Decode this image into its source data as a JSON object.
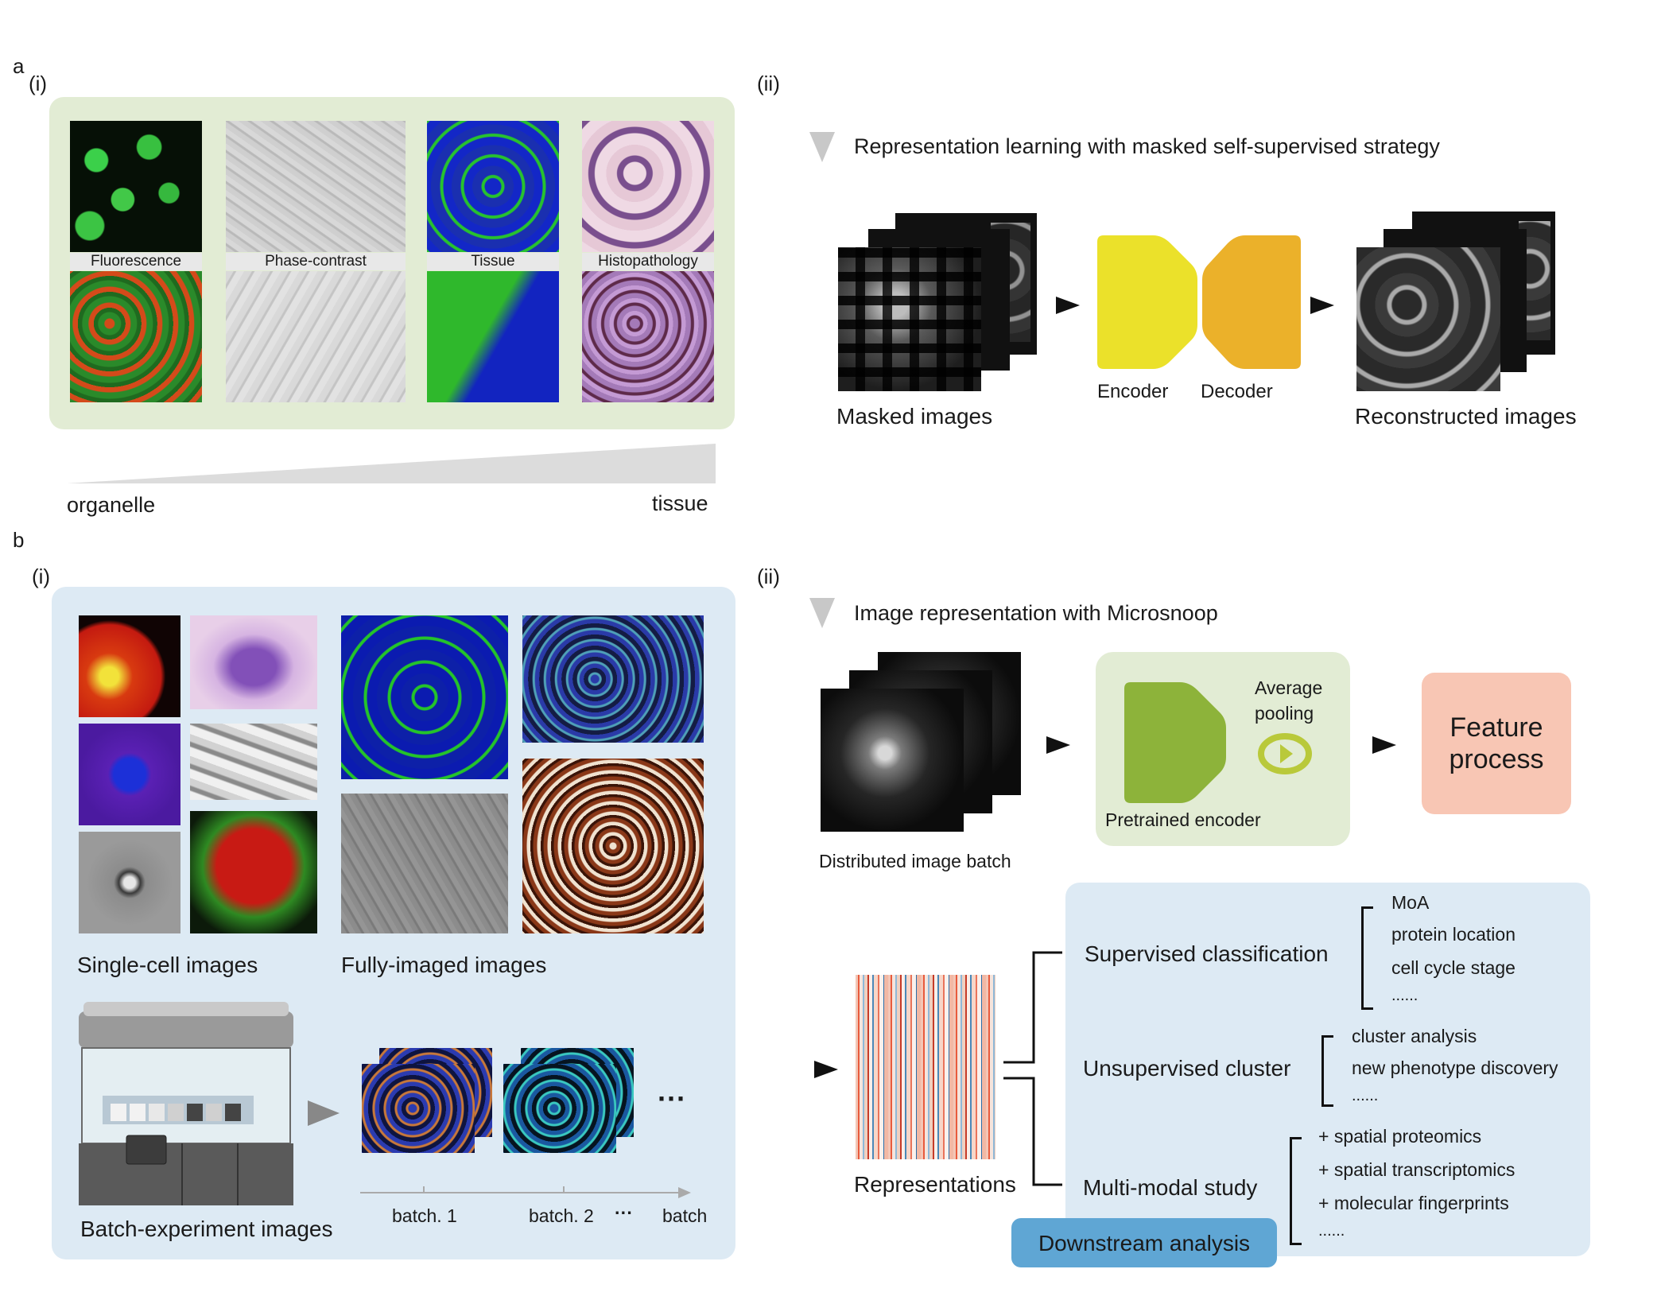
{
  "panels": {
    "a": {
      "letter": "a",
      "i": "(i)",
      "ii": "(ii)"
    },
    "b": {
      "letter": "b",
      "i": "(i)",
      "ii": "(ii)"
    }
  },
  "a_i": {
    "modalities": [
      "Fluorescence",
      "Phase-contrast",
      "Tissue",
      "Histopathology"
    ],
    "scale_left": "organelle",
    "scale_right": "tissue"
  },
  "a_ii": {
    "heading": "Representation learning with masked self-supervised strategy",
    "masked_label": "Masked images",
    "encoder_label": "Encoder",
    "decoder_label": "Decoder",
    "reconstructed_label": "Reconstructed images",
    "encoder_color": "#ebe12a",
    "decoder_color": "#ebb12a"
  },
  "b_i": {
    "single_cell_label": "Single-cell images",
    "fully_imaged_label": "Fully-imaged images",
    "batch_experiment_label": "Batch-experiment images",
    "batch_axis": [
      "batch. 1",
      "batch. 2",
      "···",
      "batch"
    ],
    "ellipsis": "···"
  },
  "b_ii": {
    "heading": "Image representation with Microsnoop",
    "distributed_label": "Distributed image batch",
    "pooling_label_1": "Average",
    "pooling_label_2": "pooling",
    "pretrained_label": "Pretrained encoder",
    "feature_1": "Feature",
    "feature_2": "process",
    "representations_label": "Representations",
    "downstream_label": "Downstream analysis",
    "encoder_color": "#8db33a",
    "feature_color": "#f8c6b4",
    "downstream_color": "#5fa6d4",
    "supervised": {
      "title": "Supervised classification",
      "items": [
        "MoA",
        "protein location",
        "cell cycle stage",
        "......"
      ]
    },
    "unsupervised": {
      "title": "Unsupervised cluster",
      "items": [
        "cluster analysis",
        "new phenotype discovery",
        "......"
      ]
    },
    "multimodal": {
      "title": "Multi-modal study",
      "items": [
        "+ spatial proteomics",
        "+ spatial transcriptomics",
        "+ molecular fingerprints",
        "......"
      ]
    }
  }
}
